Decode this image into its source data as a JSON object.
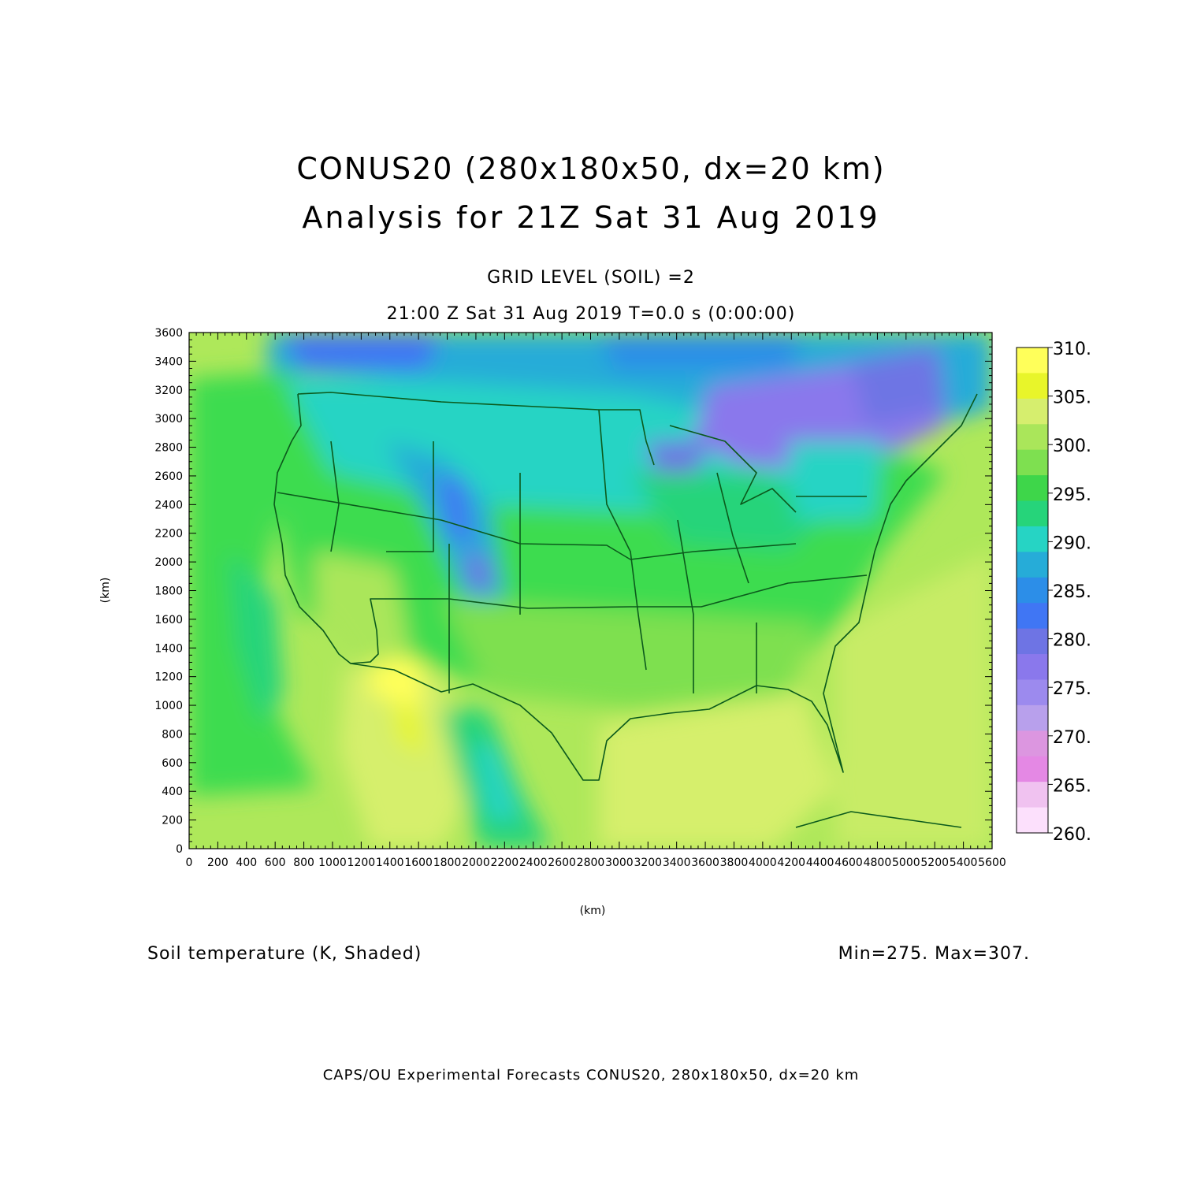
{
  "title_line1": "CONUS20 (280x180x50, dx=20 km)",
  "title_line2": "Analysis for 21Z Sat 31 Aug 2019",
  "subtitle_line1": "GRID LEVEL (SOIL) =2",
  "subtitle_line2": "21:00 Z Sat 31 Aug 2019    T=0.0 s (0:00:00)",
  "x_axis_label": "(km)",
  "y_axis_label": "(km)",
  "x_ticks": [
    "0",
    "200",
    "400",
    "600",
    "800",
    "1000",
    "1200",
    "1400",
    "1600",
    "1800",
    "2000",
    "2200",
    "2400",
    "2600",
    "2800",
    "3000",
    "3200",
    "3400",
    "3600",
    "3800",
    "4000",
    "4200",
    "4400",
    "4600",
    "4800",
    "5000",
    "5200",
    "5400",
    "5600"
  ],
  "y_ticks": [
    "0",
    "200",
    "400",
    "600",
    "800",
    "1000",
    "1200",
    "1400",
    "1600",
    "1800",
    "2000",
    "2200",
    "2400",
    "2600",
    "2800",
    "3000",
    "3200",
    "3400",
    "3600"
  ],
  "x_range": [
    0,
    5600
  ],
  "y_range": [
    0,
    3600
  ],
  "colorbar": {
    "labels": [
      "310.",
      "305.",
      "300.",
      "295.",
      "290.",
      "285.",
      "280.",
      "275.",
      "270.",
      "265.",
      "260."
    ],
    "colors": [
      "#ffff5a",
      "#e8f52a",
      "#d6ee6e",
      "#aae65a",
      "#7ee050",
      "#3ed64a",
      "#26d47a",
      "#26d4c4",
      "#26acd8",
      "#2c8ee8",
      "#4076f4",
      "#6e74e4",
      "#8a78ec",
      "#9c8aee",
      "#b8a0ec",
      "#dc96e0",
      "#e488e4",
      "#f0c2f0",
      "#fce0fc"
    ]
  },
  "variable_label": "Soil temperature (K, Shaded)",
  "min_max_label": "Min=275. Max=307.",
  "credit_line": "CAPS/OU Experimental Forecasts  CONUS20, 280x180x50, dx=20 km",
  "map_colors": {
    "ocean": "#aee85a",
    "land_base": "#3edc50",
    "border": "#0b5a1c",
    "gulf": "#d6ef6c"
  }
}
